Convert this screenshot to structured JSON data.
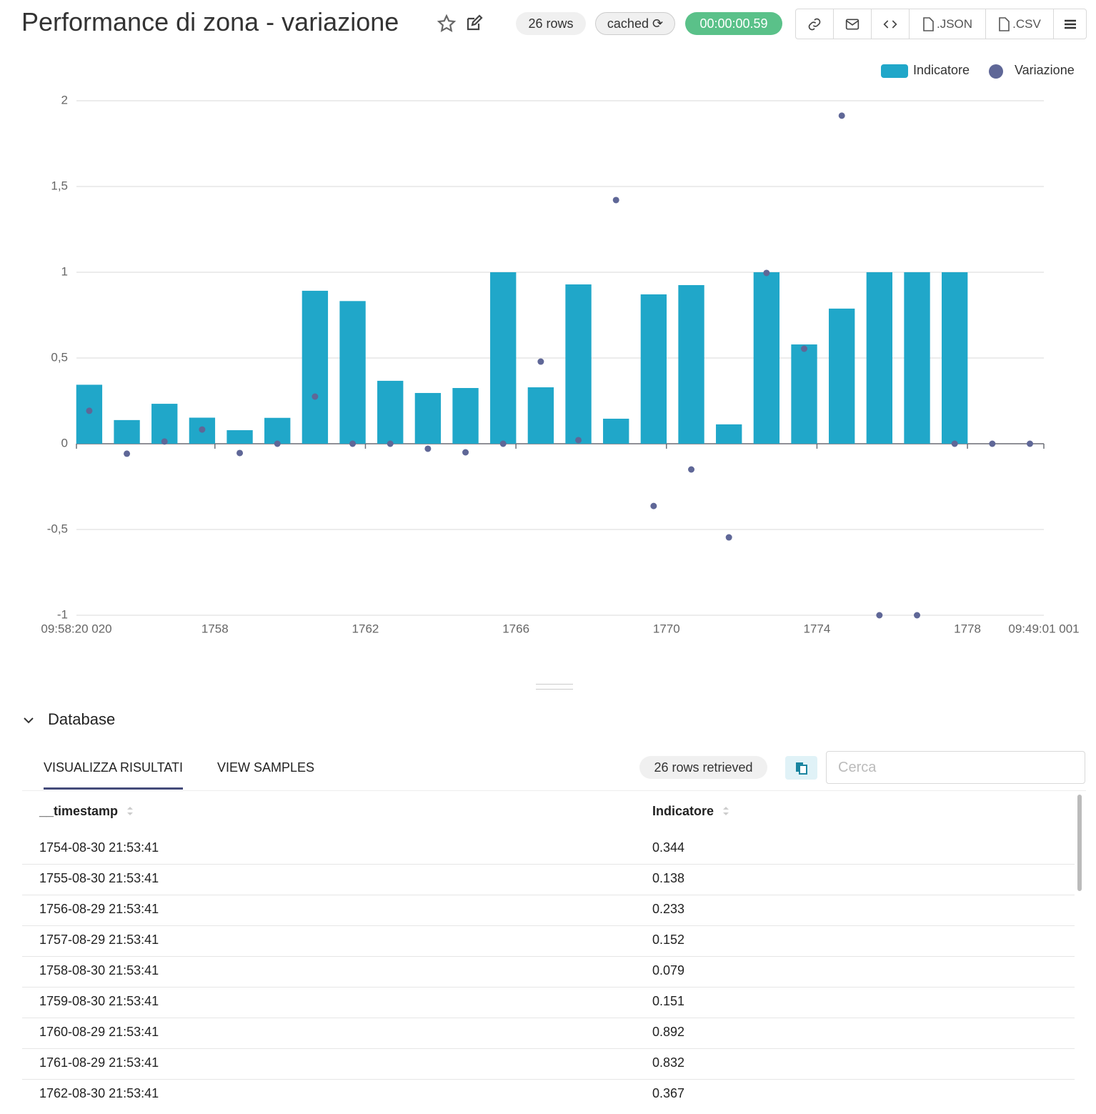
{
  "header": {
    "title": "Performance di zona - variazione",
    "rows_badge": "26 rows",
    "cached_badge": "cached",
    "timer": "00:00:00.59",
    "json_button": ".JSON",
    "csv_button": ".CSV"
  },
  "chart_data": {
    "type": "combo",
    "x": [
      1754.66,
      1755.66,
      1756.66,
      1757.66,
      1758.66,
      1759.66,
      1760.66,
      1761.66,
      1762.66,
      1763.66,
      1764.66,
      1765.66,
      1766.66,
      1767.66,
      1768.66,
      1769.66,
      1770.66,
      1771.66,
      1772.66,
      1773.66,
      1774.66,
      1775.66,
      1776.66,
      1777.66,
      1778.66,
      1779.66
    ],
    "series": [
      {
        "name": "Indicatore",
        "type": "bar",
        "color": "#20a7c9",
        "values": [
          0.344,
          0.138,
          0.233,
          0.152,
          0.079,
          0.151,
          0.892,
          0.832,
          0.367,
          0.296,
          0.325,
          1.0,
          0.329,
          0.929,
          0.146,
          0.871,
          0.925,
          0.113,
          1.0,
          0.579,
          0.788,
          1.0,
          1.0,
          1.0,
          null,
          null
        ]
      },
      {
        "name": "Variazione",
        "type": "scatter",
        "color": "#5f6797",
        "values": [
          0.192,
          -0.058,
          0.013,
          0.083,
          -0.054,
          0,
          0.275,
          0,
          0,
          -0.029,
          -0.05,
          0,
          0.479,
          0.021,
          1.421,
          -0.363,
          -0.15,
          -0.546,
          0.996,
          0.554,
          1.913,
          -1,
          -1,
          0,
          0,
          0
        ]
      }
    ],
    "xlim": [
      1754.32,
      1780.03
    ],
    "xticks": [
      {
        "value": 1754.32,
        "label": "09:58:20 020"
      },
      1758,
      1762,
      1766,
      1770,
      1774,
      1778,
      {
        "value": 1780.03,
        "label": "09:49:01 001"
      }
    ],
    "ylim": [
      -1,
      2
    ],
    "yticks": [
      -1,
      {
        "value": -0.5,
        "label": "-0,5"
      },
      0,
      {
        "value": 0.5,
        "label": "0,5"
      },
      1,
      {
        "value": 1.5,
        "label": "1,5"
      },
      2
    ],
    "grid": true,
    "legend": "top-right"
  },
  "results": {
    "section": "Database",
    "tabs": [
      "VISUALIZZA RISULTATI",
      "VIEW SAMPLES"
    ],
    "rows_retrieved": "26 rows retrieved",
    "search_placeholder": "Cerca"
  },
  "table": {
    "columns": [
      "__timestamp",
      "Indicatore"
    ],
    "rows": [
      [
        "1754-08-30 21:53:41",
        "0.344"
      ],
      [
        "1755-08-30 21:53:41",
        "0.138"
      ],
      [
        "1756-08-29 21:53:41",
        "0.233"
      ],
      [
        "1757-08-29 21:53:41",
        "0.152"
      ],
      [
        "1758-08-30 21:53:41",
        "0.079"
      ],
      [
        "1759-08-30 21:53:41",
        "0.151"
      ],
      [
        "1760-08-29 21:53:41",
        "0.892"
      ],
      [
        "1761-08-29 21:53:41",
        "0.832"
      ],
      [
        "1762-08-30 21:53:41",
        "0.367"
      ]
    ]
  }
}
